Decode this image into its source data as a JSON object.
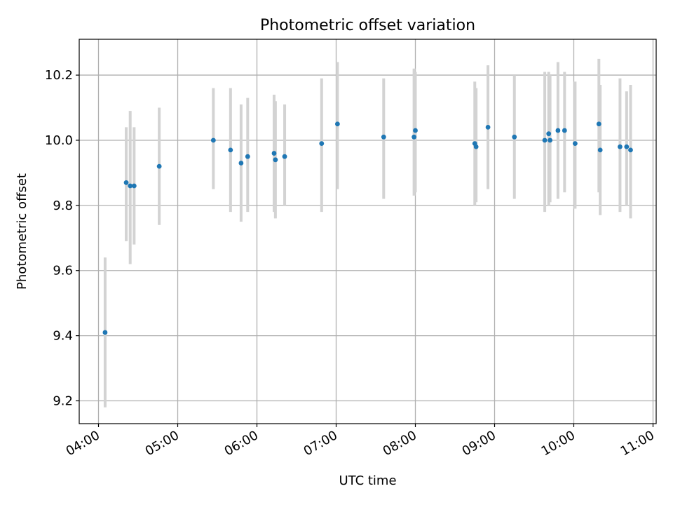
{
  "chart_data": {
    "type": "scatter",
    "title": "Photometric offset variation",
    "xlabel": "UTC time",
    "ylabel": "Photometric offset",
    "x_axis_type": "time",
    "xlim": [
      "04:00",
      "11:00"
    ],
    "ylim": [
      9.13,
      10.31
    ],
    "x_ticks": [
      "04:00",
      "05:00",
      "06:00",
      "07:00",
      "08:00",
      "09:00",
      "10:00",
      "11:00"
    ],
    "y_ticks": [
      "9.2",
      "9.4",
      "9.6",
      "9.8",
      "10.0",
      "10.2"
    ],
    "grid": true,
    "legend": false,
    "colors": {
      "point": "#1f77b4",
      "errorbar": "#d3d3d3",
      "grid": "#b0b0b0",
      "axis": "#000000"
    },
    "series": [
      {
        "points": [
          {
            "x": "04:05",
            "y": 9.41,
            "lo": 9.18,
            "hi": 9.64
          },
          {
            "x": "04:21",
            "y": 9.87,
            "lo": 9.69,
            "hi": 10.04
          },
          {
            "x": "04:24",
            "y": 9.86,
            "lo": 9.62,
            "hi": 10.09
          },
          {
            "x": "04:27",
            "y": 9.86,
            "lo": 9.68,
            "hi": 10.04
          },
          {
            "x": "04:46",
            "y": 9.92,
            "lo": 9.74,
            "hi": 10.1
          },
          {
            "x": "05:27",
            "y": 10.0,
            "lo": 9.85,
            "hi": 10.16
          },
          {
            "x": "05:40",
            "y": 9.97,
            "lo": 9.78,
            "hi": 10.16
          },
          {
            "x": "05:48",
            "y": 9.93,
            "lo": 9.75,
            "hi": 10.11
          },
          {
            "x": "05:53",
            "y": 9.95,
            "lo": 9.78,
            "hi": 10.13
          },
          {
            "x": "06:13",
            "y": 9.96,
            "lo": 9.78,
            "hi": 10.14
          },
          {
            "x": "06:14",
            "y": 9.94,
            "lo": 9.76,
            "hi": 10.12
          },
          {
            "x": "06:21",
            "y": 9.95,
            "lo": 9.8,
            "hi": 10.11
          },
          {
            "x": "06:49",
            "y": 9.99,
            "lo": 9.78,
            "hi": 10.19
          },
          {
            "x": "07:01",
            "y": 10.05,
            "lo": 9.85,
            "hi": 10.24
          },
          {
            "x": "07:36",
            "y": 10.01,
            "lo": 9.82,
            "hi": 10.19
          },
          {
            "x": "07:59",
            "y": 10.01,
            "lo": 9.83,
            "hi": 10.22
          },
          {
            "x": "08:00",
            "y": 10.03,
            "lo": 9.84,
            "hi": 10.21
          },
          {
            "x": "08:45",
            "y": 9.99,
            "lo": 9.8,
            "hi": 10.18
          },
          {
            "x": "08:46",
            "y": 9.98,
            "lo": 9.81,
            "hi": 10.16
          },
          {
            "x": "08:55",
            "y": 10.04,
            "lo": 9.85,
            "hi": 10.23
          },
          {
            "x": "09:15",
            "y": 10.01,
            "lo": 9.82,
            "hi": 10.2
          },
          {
            "x": "09:38",
            "y": 10.0,
            "lo": 9.78,
            "hi": 10.21
          },
          {
            "x": "09:41",
            "y": 10.02,
            "lo": 9.8,
            "hi": 10.21
          },
          {
            "x": "09:42",
            "y": 10.0,
            "lo": 9.81,
            "hi": 10.2
          },
          {
            "x": "09:48",
            "y": 10.03,
            "lo": 9.82,
            "hi": 10.24
          },
          {
            "x": "09:53",
            "y": 10.03,
            "lo": 9.84,
            "hi": 10.21
          },
          {
            "x": "10:01",
            "y": 9.99,
            "lo": 9.79,
            "hi": 10.18
          },
          {
            "x": "10:19",
            "y": 10.05,
            "lo": 9.84,
            "hi": 10.25
          },
          {
            "x": "10:20",
            "y": 9.97,
            "lo": 9.77,
            "hi": 10.17
          },
          {
            "x": "10:35",
            "y": 9.98,
            "lo": 9.78,
            "hi": 10.19
          },
          {
            "x": "10:40",
            "y": 9.98,
            "lo": 9.8,
            "hi": 10.15
          },
          {
            "x": "10:43",
            "y": 9.97,
            "lo": 9.76,
            "hi": 10.17
          }
        ]
      }
    ]
  }
}
